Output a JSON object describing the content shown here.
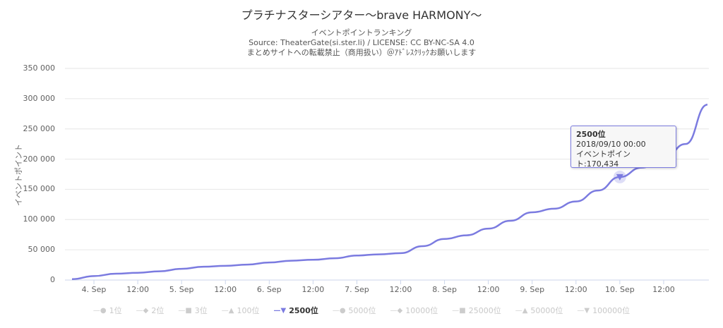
{
  "title": "プラチナスターシアター～brave HARMONY～",
  "subtitle_lines": [
    "イベントポイントランキング",
    "Source: TheaterGate(si.ster.li) / LICENSE: CC BY-NC-SA 4.0",
    "まとめサイトへの転載禁止（商用扱い）＠ｱﾄﾞﾚｽｸﾘｯｸお願いします"
  ],
  "tooltip": {
    "series": "2500位",
    "date": "2018/09/10 00:00",
    "value_text": "イベントポイント:170,434"
  },
  "colors": {
    "series": "#7b7be0",
    "grid": "#e6e6e6",
    "inactive": "#cccccc"
  },
  "chart_data": {
    "type": "line",
    "title": "プラチナスターシアター～brave HARMONY～",
    "ylabel": "イベントポイント",
    "ylim": [
      0,
      350000
    ],
    "yticks": [
      "0",
      "50 000",
      "100 000",
      "150 000",
      "200 000",
      "250 000",
      "300 000",
      "350 000"
    ],
    "xlim": [
      "2018-09-03 18:00",
      "2018-09-11 00:00"
    ],
    "xticks": [
      "4. Sep",
      "12:00",
      "5. Sep",
      "12:00",
      "6. Sep",
      "12:00",
      "7. Sep",
      "12:00",
      "8. Sep",
      "12:00",
      "9. Sep",
      "12:00",
      "10. Sep",
      "12:00"
    ],
    "legend": [
      "1位",
      "2位",
      "3位",
      "100位",
      "2500位",
      "5000位",
      "10000位",
      "25000位",
      "50000位",
      "100000位"
    ],
    "legend_active": "2500位",
    "legend_position": "bottom",
    "series": [
      {
        "name": "2500位",
        "x": [
          "09/03 18:00",
          "09/04 00:00",
          "09/04 06:00",
          "09/04 12:00",
          "09/04 18:00",
          "09/05 00:00",
          "09/05 06:00",
          "09/05 12:00",
          "09/05 18:00",
          "09/06 00:00",
          "09/06 06:00",
          "09/06 12:00",
          "09/06 18:00",
          "09/07 00:00",
          "09/07 06:00",
          "09/07 12:00",
          "09/07 18:00",
          "09/08 00:00",
          "09/08 06:00",
          "09/08 12:00",
          "09/08 18:00",
          "09/09 00:00",
          "09/09 06:00",
          "09/09 12:00",
          "09/09 18:00",
          "09/10 00:00",
          "09/10 06:00",
          "09/10 12:00",
          "09/10 18:00",
          "09/11 00:00"
        ],
        "values": [
          1500,
          6500,
          10500,
          12000,
          14500,
          18500,
          22000,
          23500,
          25500,
          29000,
          32000,
          33500,
          36000,
          40500,
          42500,
          44500,
          56000,
          68000,
          74000,
          85000,
          98000,
          112000,
          118000,
          130000,
          148000,
          170434,
          186000,
          200000,
          225000,
          290000
        ]
      }
    ]
  }
}
